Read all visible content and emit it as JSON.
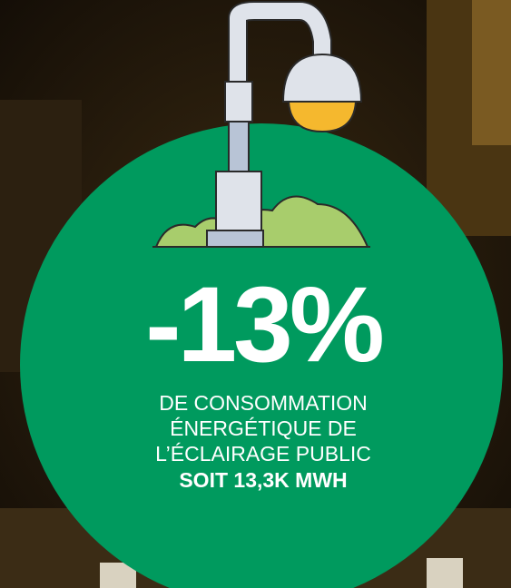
{
  "headline": {
    "value": "-13%"
  },
  "description": {
    "lines": [
      "DE CONSOMMATION",
      "ÉNERGÉTIQUE DE",
      "L’ÉCLAIRAGE PUBLIC"
    ],
    "highlight": "SOIT 13,3K MWH"
  }
}
